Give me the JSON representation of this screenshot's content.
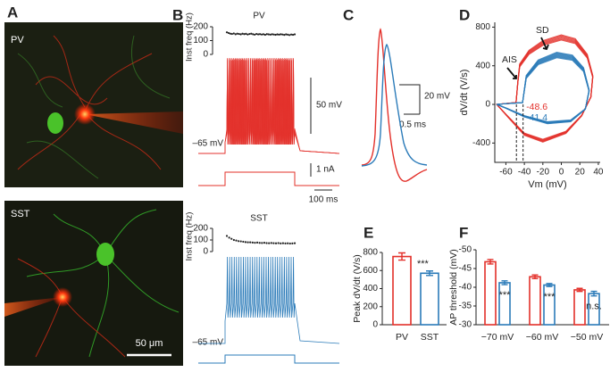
{
  "figure": {
    "panels": [
      "A",
      "B",
      "C",
      "D",
      "E",
      "F"
    ],
    "image_labels": [
      "PV",
      "SST"
    ],
    "scale_bar_image": "50 μm",
    "b_scales": {
      "voltage": "50 mV",
      "current": "1 nA",
      "time": "100 ms",
      "rest_pv": "–65 mV",
      "rest_sst": "–65 mV"
    },
    "c_scales": {
      "voltage": "20 mV",
      "time": "0.5 ms"
    }
  },
  "chart_data": [
    {
      "type": "dots",
      "title": "PV",
      "ylabel": "Inst freq (Hz)",
      "color": "#222222",
      "ylim": [
        0,
        200
      ],
      "yticks": [
        0,
        100,
        200
      ],
      "values": [
        160,
        155,
        150,
        148,
        152,
        146,
        150,
        148,
        145,
        150,
        147,
        149,
        144,
        148,
        150,
        146,
        143,
        148,
        145,
        147,
        144,
        146,
        142,
        147,
        145,
        143,
        146,
        144,
        142,
        145,
        143,
        146,
        144,
        141,
        145,
        143,
        140,
        144,
        142,
        145
      ]
    },
    {
      "type": "dots",
      "title": "SST",
      "ylabel": "Inst freq (Hz)",
      "color": "#222222",
      "ylim": [
        0,
        200
      ],
      "yticks": [
        0,
        100,
        200
      ],
      "values": [
        135,
        120,
        110,
        100,
        95,
        90,
        88,
        85,
        82,
        80,
        80,
        78,
        76,
        78,
        75,
        74,
        76,
        73,
        72,
        74,
        72,
        71,
        73,
        70,
        72,
        70,
        71,
        69,
        70,
        72
      ]
    },
    {
      "type": "phase",
      "xlabel": "Vm (mV)",
      "ylabel": "dV/dt (V/s)",
      "xlim": [
        -72,
        42
      ],
      "ylim": [
        -600,
        850
      ],
      "xticks": [
        -60,
        -40,
        -20,
        0,
        20,
        40
      ],
      "yticks": [
        -400,
        0,
        400,
        800
      ],
      "thresholds": [
        -48.6,
        -41.4
      ],
      "colors": [
        "#e3302a",
        "#2b7bb9"
      ],
      "annotations": [
        "SD",
        "AIS"
      ]
    },
    {
      "type": "bar",
      "ylabel": "Peak dV/dt (V/s)",
      "categories": [
        "PV",
        "SST"
      ],
      "values": [
        755,
        570
      ],
      "errors": [
        40,
        25
      ],
      "colors": [
        "#e3302a",
        "#2b7bb9"
      ],
      "ylim": [
        0,
        800
      ],
      "yticks": [
        0,
        200,
        400,
        600,
        800
      ],
      "annotation": "***"
    },
    {
      "type": "grouped-bar",
      "ylabel": "AP threshold (mV)",
      "categories": [
        "−70 mV",
        "−60 mV",
        "−50 mV"
      ],
      "series": [
        {
          "color": "#e3302a",
          "values": [
            -46.8,
            -42.8,
            -39.3
          ],
          "errors": [
            0.6,
            0.5,
            0.4
          ]
        },
        {
          "color": "#2b7bb9",
          "values": [
            -41.2,
            -40.6,
            -38.3
          ],
          "errors": [
            0.5,
            0.4,
            0.6
          ]
        }
      ],
      "ylim": [
        -30,
        -50
      ],
      "yticks": [
        -30,
        -35,
        -40,
        -45,
        -50
      ],
      "annotations": [
        "***",
        "***",
        "n.s."
      ]
    }
  ]
}
